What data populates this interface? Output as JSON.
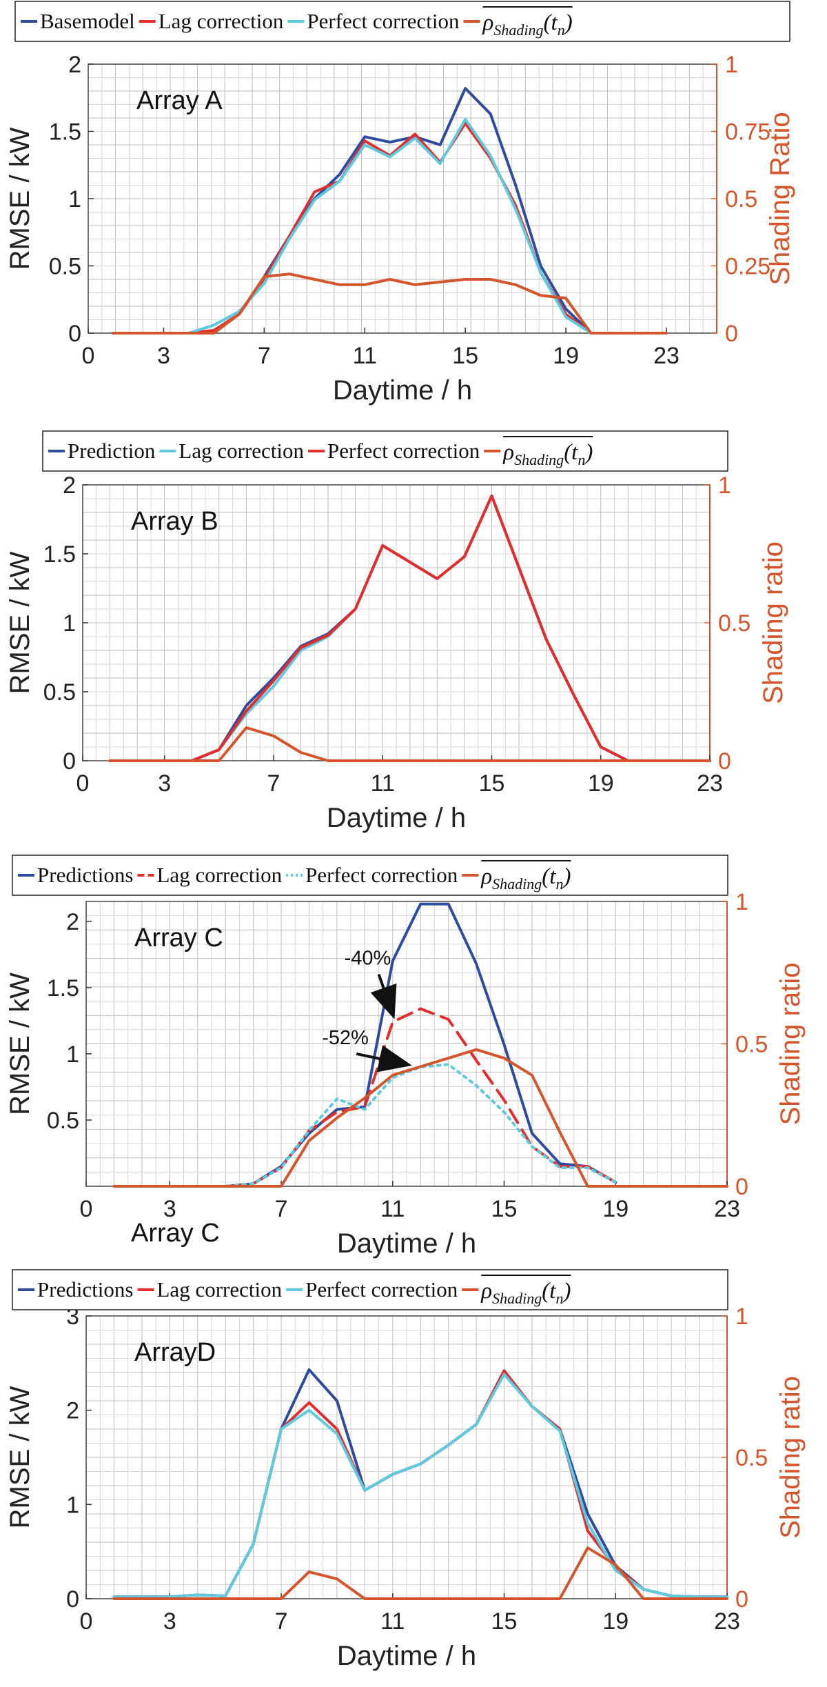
{
  "colors": {
    "basemodel": "#2e4b9f",
    "lag": "#e32d2d",
    "perfect": "#5ccbe0",
    "shading": "#d4552b",
    "right_axis": "#d4552b"
  },
  "rho_symbol": "ρ",
  "rho_sub": "Shading",
  "rho_arg": "(t",
  "rho_argsub": "n",
  "rho_close": ")",
  "outside_label": "Array C",
  "chart_data": [
    {
      "type": "line",
      "title": "Array A",
      "xlabel": "Daytime / h",
      "ylabel": "RMSE / kW",
      "ylabel_right": "Shading Ratio",
      "xlim": [
        0,
        25
      ],
      "ylim": [
        0,
        2
      ],
      "ylim_right": [
        0,
        1
      ],
      "xticks": [
        "0",
        "3",
        "7",
        "11",
        "15",
        "19",
        "23"
      ],
      "xtick_values": [
        0,
        3,
        7,
        11,
        15,
        19,
        23
      ],
      "yticks": [
        "0",
        "0.5",
        "1",
        "1.5",
        "2"
      ],
      "ytick_values": [
        0,
        0.5,
        1,
        1.5,
        2
      ],
      "yticks_right": [
        "0",
        "0.25",
        "0.5",
        "0.75",
        "1"
      ],
      "ytick_values_right": [
        0,
        0.25,
        0.5,
        0.75,
        1
      ],
      "legend": [
        {
          "name": "Basemodel",
          "key": "basemodel"
        },
        {
          "name": "Lag correction",
          "key": "lag"
        },
        {
          "name": "Perfect correction",
          "key": "perfect"
        },
        {
          "name": "rho",
          "key": "shading"
        }
      ],
      "x": [
        1,
        2,
        3,
        4,
        5,
        6,
        7,
        8,
        9,
        10,
        11,
        12,
        13,
        14,
        15,
        16,
        17,
        18,
        19,
        20,
        21,
        22,
        23
      ],
      "series": [
        {
          "name": "Basemodel",
          "key": "basemodel",
          "axis": "left",
          "values": [
            0,
            0,
            0,
            0,
            0.02,
            0.14,
            0.42,
            0.72,
            1.0,
            1.18,
            1.46,
            1.42,
            1.46,
            1.4,
            1.82,
            1.63,
            1.1,
            0.5,
            0.18,
            0,
            0,
            0,
            0
          ]
        },
        {
          "name": "Lag correction",
          "key": "lag",
          "axis": "left",
          "values": [
            0,
            0,
            0,
            0,
            0.02,
            0.14,
            0.4,
            0.72,
            1.05,
            1.13,
            1.43,
            1.32,
            1.48,
            1.27,
            1.56,
            1.3,
            0.95,
            0.45,
            0.14,
            0,
            0,
            0,
            0
          ]
        },
        {
          "name": "Perfect correction",
          "key": "perfect",
          "axis": "left",
          "values": [
            0,
            0,
            0,
            0,
            0.06,
            0.16,
            0.37,
            0.7,
            0.99,
            1.13,
            1.4,
            1.31,
            1.45,
            1.26,
            1.59,
            1.32,
            0.92,
            0.45,
            0.12,
            0,
            0,
            0,
            0
          ]
        },
        {
          "name": "rho",
          "key": "shading",
          "axis": "right",
          "values": [
            0,
            0,
            0,
            0,
            0,
            0.07,
            0.21,
            0.22,
            0.2,
            0.18,
            0.18,
            0.2,
            0.18,
            0.19,
            0.2,
            0.2,
            0.18,
            0.14,
            0.13,
            0,
            0,
            0,
            0
          ]
        }
      ]
    },
    {
      "type": "line",
      "title": "Array B",
      "xlabel": "Daytime / h",
      "ylabel": "RMSE / kW",
      "ylabel_right": "Shading ratio",
      "xlim": [
        0,
        23
      ],
      "ylim": [
        0,
        2
      ],
      "ylim_right": [
        0,
        1
      ],
      "xticks": [
        "0",
        "3",
        "7",
        "11",
        "15",
        "19",
        "23"
      ],
      "xtick_values": [
        0,
        3,
        7,
        11,
        15,
        19,
        23
      ],
      "yticks": [
        "0",
        "0.5",
        "1",
        "1.5",
        "2"
      ],
      "ytick_values": [
        0,
        0.5,
        1,
        1.5,
        2
      ],
      "yticks_right": [
        "0",
        "0.5",
        "1"
      ],
      "ytick_values_right": [
        0,
        0.5,
        1
      ],
      "legend": [
        {
          "name": "Prediction",
          "key": "basemodel"
        },
        {
          "name": "Lag correction",
          "key": "perfect"
        },
        {
          "name": "Perfect correction",
          "key": "lag"
        },
        {
          "name": "rho",
          "key": "shading"
        }
      ],
      "x": [
        1,
        2,
        3,
        4,
        5,
        6,
        7,
        8,
        9,
        10,
        11,
        12,
        13,
        14,
        15,
        16,
        17,
        18,
        19,
        20,
        21,
        22,
        23
      ],
      "series": [
        {
          "name": "Prediction",
          "key": "basemodel",
          "axis": "left",
          "values": [
            0,
            0,
            0,
            0,
            0.08,
            0.4,
            0.6,
            0.83,
            0.92,
            1.1,
            1.56,
            1.44,
            1.32,
            1.48,
            1.92,
            1.4,
            0.88,
            0.48,
            0.1,
            0,
            0,
            0,
            0
          ]
        },
        {
          "name": "Lag correction",
          "key": "perfect",
          "axis": "left",
          "values": [
            0,
            0,
            0,
            0,
            0.08,
            0.34,
            0.54,
            0.8,
            0.9,
            1.1,
            1.56,
            1.44,
            1.32,
            1.48,
            1.92,
            1.4,
            0.88,
            0.48,
            0.1,
            0,
            0,
            0,
            0
          ]
        },
        {
          "name": "Perfect correction",
          "key": "lag",
          "axis": "left",
          "values": [
            0,
            0,
            0,
            0,
            0.08,
            0.36,
            0.58,
            0.82,
            0.91,
            1.1,
            1.56,
            1.44,
            1.32,
            1.48,
            1.92,
            1.4,
            0.88,
            0.48,
            0.1,
            0,
            0,
            0,
            0
          ]
        },
        {
          "name": "rho",
          "key": "shading",
          "axis": "right",
          "values": [
            0,
            0,
            0,
            0,
            0,
            0.12,
            0.09,
            0.03,
            0,
            0,
            0,
            0,
            0,
            0,
            0,
            0,
            0,
            0,
            0,
            0,
            0,
            0,
            0
          ]
        }
      ]
    },
    {
      "type": "line",
      "title": "Array C",
      "xlabel": "Daytime / h",
      "ylabel": "RMSE / kW",
      "ylabel_right": "Shading ratio",
      "xlim": [
        0,
        23
      ],
      "ylim": [
        0,
        2.15
      ],
      "ylim_right": [
        0,
        1
      ],
      "xticks": [
        "0",
        "3",
        "7",
        "11",
        "15",
        "19",
        "23"
      ],
      "xtick_values": [
        0,
        3,
        7,
        11,
        15,
        19,
        23
      ],
      "yticks": [
        "0.5",
        "1",
        "1.5",
        "2"
      ],
      "ytick_values": [
        0.5,
        1,
        1.5,
        2
      ],
      "yticks_right": [
        "0",
        "0.5",
        "1"
      ],
      "ytick_values_right": [
        0,
        0.5,
        1
      ],
      "legend": [
        {
          "name": "Predictions",
          "key": "basemodel",
          "dash": "solid"
        },
        {
          "name": "Lag correction",
          "key": "lag",
          "dash": "dashed"
        },
        {
          "name": "Perfect correction",
          "key": "perfect",
          "dash": "dotted"
        },
        {
          "name": "rho",
          "key": "shading",
          "dash": "solid"
        }
      ],
      "annotations": [
        {
          "text": "-40%",
          "x_from": 10.5,
          "y_from": 1.6,
          "x_to": 11.0,
          "y_to": 1.3
        },
        {
          "text": "-52%",
          "x_from": 9.7,
          "y_from": 1.0,
          "x_to": 11.5,
          "y_to": 0.92
        }
      ],
      "x": [
        1,
        2,
        3,
        4,
        5,
        6,
        7,
        8,
        9,
        10,
        11,
        12,
        13,
        14,
        15,
        16,
        17,
        18,
        19,
        20,
        21,
        22,
        23
      ],
      "series": [
        {
          "name": "Predictions",
          "key": "basemodel",
          "axis": "left",
          "dash": "solid",
          "values": [
            0,
            0,
            0,
            0,
            0,
            0.02,
            0.15,
            0.4,
            0.58,
            0.6,
            1.7,
            2.13,
            2.13,
            1.68,
            1.07,
            0.4,
            0.17,
            0.15,
            0.03,
            null,
            null,
            null,
            null
          ]
        },
        {
          "name": "Lag correction",
          "key": "lag",
          "axis": "left",
          "dash": "dashed",
          "values": [
            0,
            0,
            0,
            0,
            0,
            0.02,
            0.14,
            0.42,
            0.56,
            0.6,
            1.24,
            1.34,
            1.26,
            0.95,
            0.65,
            0.3,
            0.15,
            0.15,
            0.03,
            null,
            null,
            null,
            null
          ]
        },
        {
          "name": "Perfect correction",
          "key": "perfect",
          "axis": "left",
          "dash": "dotted",
          "values": [
            0,
            0,
            0,
            0,
            0,
            0.02,
            0.14,
            0.42,
            0.66,
            0.58,
            0.82,
            0.9,
            0.92,
            0.76,
            0.56,
            0.3,
            0.14,
            0.14,
            0.03,
            null,
            null,
            null,
            null
          ]
        },
        {
          "name": "rho",
          "key": "shading",
          "axis": "right",
          "dash": "solid",
          "values": [
            0,
            0,
            0,
            0,
            0,
            0,
            0,
            0.16,
            0.24,
            0.31,
            0.39,
            0.42,
            0.45,
            0.48,
            0.45,
            0.39,
            0.19,
            0,
            0,
            0,
            0,
            0,
            0
          ]
        }
      ]
    },
    {
      "type": "line",
      "title": "ArrayD",
      "xlabel": "Daytime / h",
      "ylabel": "RMSE / kW",
      "ylabel_right": "Shading ratio",
      "xlim": [
        0,
        23
      ],
      "ylim": [
        0,
        3
      ],
      "ylim_right": [
        0,
        1
      ],
      "xticks": [
        "0",
        "3",
        "7",
        "11",
        "15",
        "19",
        "23"
      ],
      "xtick_values": [
        0,
        3,
        7,
        11,
        15,
        19,
        23
      ],
      "yticks": [
        "0",
        "1",
        "2",
        "3"
      ],
      "ytick_values": [
        0,
        1,
        2,
        3
      ],
      "yticks_right": [
        "0",
        "0.5",
        "1"
      ],
      "ytick_values_right": [
        0,
        0.5,
        1
      ],
      "legend": [
        {
          "name": "Predictions",
          "key": "basemodel"
        },
        {
          "name": "Lag correction",
          "key": "lag"
        },
        {
          "name": "Perfect correction",
          "key": "perfect"
        },
        {
          "name": "rho",
          "key": "shading"
        }
      ],
      "x": [
        1,
        2,
        3,
        4,
        5,
        6,
        7,
        8,
        9,
        10,
        11,
        12,
        13,
        14,
        15,
        16,
        17,
        18,
        19,
        20,
        21,
        22,
        23
      ],
      "series": [
        {
          "name": "Predictions",
          "key": "basemodel",
          "axis": "left",
          "values": [
            0.02,
            0.02,
            0.02,
            0.04,
            0.03,
            0.58,
            1.8,
            2.43,
            2.1,
            1.15,
            1.32,
            1.43,
            1.63,
            1.85,
            2.4,
            2.04,
            1.8,
            0.9,
            0.35,
            0.1,
            0.03,
            0.02,
            0.02
          ]
        },
        {
          "name": "Lag correction",
          "key": "lag",
          "axis": "left",
          "values": [
            0.02,
            0.02,
            0.02,
            0.04,
            0.03,
            0.58,
            1.8,
            2.08,
            1.8,
            1.15,
            1.32,
            1.43,
            1.63,
            1.85,
            2.42,
            2.04,
            1.8,
            0.72,
            0.33,
            0.1,
            0.03,
            0.02,
            0.02
          ]
        },
        {
          "name": "Perfect correction",
          "key": "perfect",
          "axis": "left",
          "values": [
            0.02,
            0.02,
            0.02,
            0.04,
            0.03,
            0.58,
            1.8,
            2.0,
            1.75,
            1.15,
            1.32,
            1.43,
            1.63,
            1.85,
            2.38,
            2.04,
            1.78,
            0.8,
            0.3,
            0.1,
            0.03,
            0.02,
            0.02
          ]
        },
        {
          "name": "rho",
          "key": "shading",
          "axis": "right",
          "values": [
            0,
            0,
            0,
            0,
            0,
            0,
            0,
            0.095,
            0.07,
            0,
            0,
            0,
            0,
            0,
            0,
            0,
            0,
            0.18,
            0.12,
            0,
            0,
            0,
            0
          ]
        }
      ]
    }
  ]
}
